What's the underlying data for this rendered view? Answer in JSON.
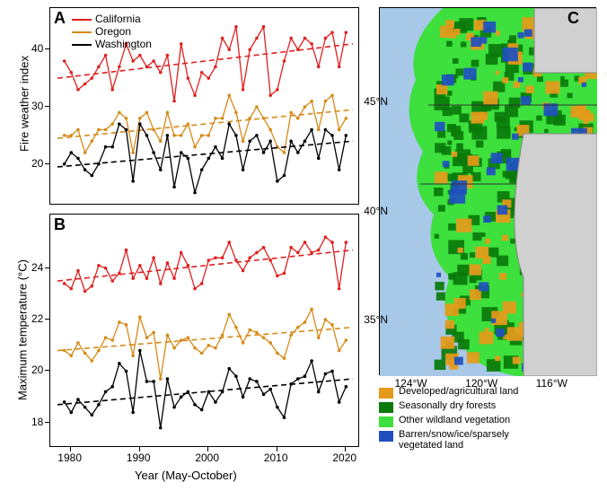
{
  "series": {
    "names": [
      "California",
      "Oregon",
      "Washington"
    ],
    "colors": [
      "#e02020",
      "#d68a18",
      "#000000"
    ]
  },
  "years": [
    1979,
    1980,
    1981,
    1982,
    1983,
    1984,
    1985,
    1986,
    1987,
    1988,
    1989,
    1990,
    1991,
    1992,
    1993,
    1994,
    1995,
    1996,
    1997,
    1998,
    1999,
    2000,
    2001,
    2002,
    2003,
    2004,
    2005,
    2006,
    2007,
    2008,
    2009,
    2010,
    2011,
    2012,
    2013,
    2014,
    2015,
    2016,
    2017,
    2018,
    2019,
    2020
  ],
  "panelA": {
    "label": "A",
    "ylabel": "Fire weather index",
    "ylim": [
      14,
      46
    ],
    "yticks": [
      20,
      30,
      40
    ],
    "xlim": [
      1978,
      2021
    ],
    "xticks": [
      1980,
      1990,
      2000,
      2010,
      2020
    ],
    "data": {
      "California": [
        38,
        36,
        33,
        34,
        35,
        37,
        39,
        33,
        37,
        41,
        38,
        39,
        37,
        38,
        36,
        39,
        31,
        41,
        35,
        32,
        36,
        35,
        37,
        42,
        40,
        44,
        33,
        40,
        42,
        44,
        32,
        33,
        38,
        42,
        40,
        42,
        41,
        37,
        42,
        43,
        37,
        43
      ],
      "Oregon": [
        25,
        25,
        26,
        22,
        24,
        26,
        26,
        27,
        29,
        28,
        22,
        28,
        29,
        26,
        24,
        29,
        25,
        25,
        27,
        23,
        25,
        25,
        28,
        28,
        32,
        29,
        24,
        28,
        30,
        28,
        26,
        23,
        22,
        29,
        28,
        30,
        31,
        26,
        31,
        32,
        26,
        28
      ],
      "Washington": [
        20,
        22,
        21,
        19,
        18,
        20,
        23,
        23,
        27,
        26,
        17,
        27,
        25,
        22,
        19,
        25,
        16,
        22,
        21,
        15,
        19,
        21,
        23,
        21,
        27,
        25,
        19,
        24,
        25,
        22,
        24,
        17,
        18,
        24,
        22,
        24,
        26,
        21,
        26,
        25,
        19,
        25
      ]
    },
    "trend": {
      "California": [
        35,
        41
      ],
      "Oregon": [
        24.5,
        29.5
      ],
      "Washington": [
        19.5,
        24
      ]
    }
  },
  "panelB": {
    "label": "B",
    "ylabel": "Maximum temperature (°C)",
    "ylim": [
      17.3,
      25.8
    ],
    "yticks": [
      18,
      20,
      22,
      24
    ],
    "xlim": [
      1978,
      2021
    ],
    "xticks": [
      1980,
      1990,
      2000,
      2010,
      2020
    ],
    "xlabel": "Year (May-October)",
    "data": {
      "California": [
        23.4,
        23.2,
        23.9,
        23.1,
        23.3,
        24.1,
        24.0,
        23.5,
        23.8,
        24.7,
        23.6,
        24.1,
        23.6,
        24.4,
        23.4,
        24.2,
        23.6,
        24.6,
        24.1,
        23.2,
        23.4,
        24.3,
        24.4,
        24.4,
        25.0,
        24.3,
        23.9,
        24.4,
        24.6,
        24.8,
        24.3,
        23.7,
        23.8,
        24.8,
        24.6,
        25.0,
        24.6,
        24.7,
        25.2,
        25.0,
        23.2,
        25.0
      ],
      "Oregon": [
        20.8,
        20.6,
        21.1,
        20.7,
        20.4,
        20.8,
        21.3,
        21.2,
        21.9,
        21.8,
        20.6,
        22.1,
        21.3,
        21.5,
        19.7,
        21.4,
        20.9,
        21.2,
        21.3,
        20.9,
        20.7,
        21.0,
        20.9,
        21.4,
        22.2,
        21.7,
        21.1,
        21.6,
        21.5,
        21.3,
        21.1,
        20.7,
        20.5,
        21.4,
        21.7,
        21.9,
        22.4,
        21.3,
        22.0,
        21.8,
        20.8,
        21.2
      ],
      "Washington": [
        18.8,
        18.4,
        18.9,
        18.6,
        18.3,
        18.7,
        19.2,
        19.4,
        20.3,
        20.0,
        18.4,
        20.8,
        19.6,
        19.6,
        17.8,
        19.7,
        18.6,
        19.0,
        19.2,
        18.7,
        18.5,
        19.2,
        18.8,
        19.2,
        20.1,
        19.8,
        19.0,
        19.7,
        19.6,
        19.1,
        19.3,
        18.6,
        18.2,
        19.5,
        19.7,
        19.8,
        20.4,
        19.2,
        19.9,
        20.0,
        18.8,
        19.4
      ]
    },
    "trend": {
      "California": [
        23.5,
        24.7
      ],
      "Oregon": [
        20.8,
        21.7
      ],
      "Washington": [
        18.7,
        19.7
      ]
    }
  },
  "panelC": {
    "label": "C",
    "yticks": [
      35,
      40,
      45
    ],
    "ytick_labels": [
      "35°N",
      "40°N",
      "45°N"
    ],
    "xticks": [
      116,
      120,
      124
    ],
    "xtick_labels": [
      "124°W",
      "120°W",
      "116°W"
    ],
    "legend": [
      {
        "color": "#e69a1a",
        "label": "Developed/agricultural land"
      },
      {
        "color": "#0a7a0a",
        "label": "Seasonally dry forests"
      },
      {
        "color": "#3de03d",
        "label": "Other wildland vegetation"
      },
      {
        "color": "#2050c0",
        "label": "Barren/snow/ice/sparsely\nvegetated land"
      }
    ],
    "ocean_color": "#a8c8e8",
    "outside_color": "#d0d0d0"
  }
}
